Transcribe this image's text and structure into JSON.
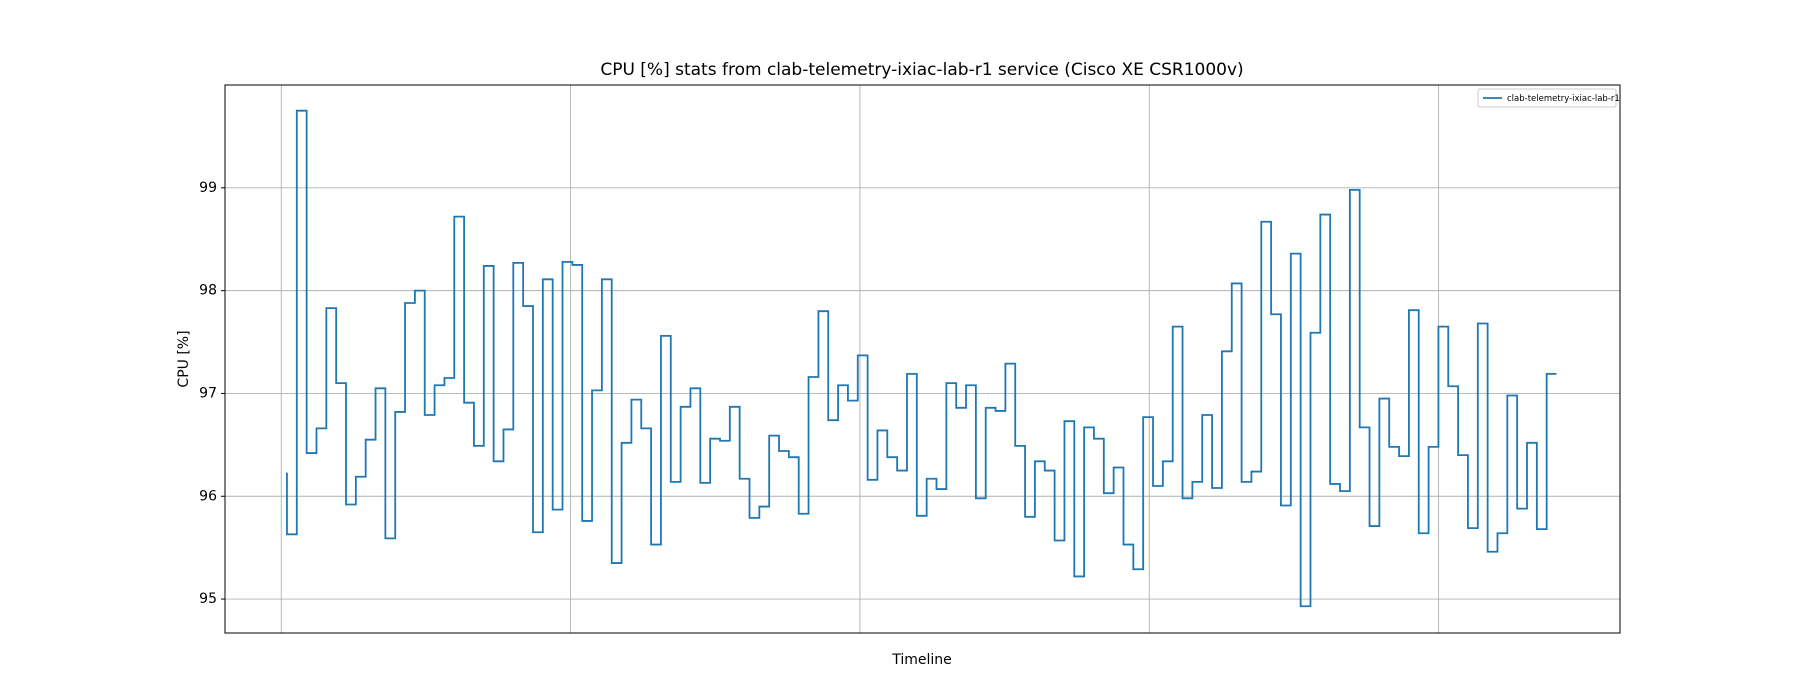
{
  "chart_data": {
    "type": "step",
    "title": "CPU [%] stats from clab-telemetry-ixiac-lab-r1 service (Cisco XE CSR1000v)",
    "xlabel": "Timeline",
    "ylabel": "CPU [%]",
    "ylim": [
      94.67,
      100.0
    ],
    "yticks": [
      95,
      96,
      97,
      98,
      99
    ],
    "grid": true,
    "legend": "upper right",
    "series": [
      {
        "name": "clab-telemetry-ixiac-lab-r1",
        "color": "#1f77b4",
        "values": [
          96.23,
          95.63,
          99.75,
          96.42,
          96.66,
          97.83,
          97.1,
          95.92,
          96.19,
          96.55,
          97.05,
          95.59,
          96.82,
          97.88,
          98.0,
          96.79,
          97.08,
          97.15,
          98.72,
          96.91,
          96.49,
          98.24,
          96.34,
          96.65,
          98.27,
          97.85,
          95.65,
          98.11,
          95.87,
          98.28,
          98.25,
          95.76,
          97.03,
          98.11,
          95.35,
          96.52,
          96.94,
          96.66,
          95.53,
          97.56,
          96.14,
          96.87,
          97.05,
          96.13,
          96.56,
          96.54,
          96.87,
          96.17,
          95.79,
          95.9,
          96.59,
          96.44,
          96.38,
          95.83,
          97.16,
          97.8,
          96.74,
          97.08,
          96.93,
          97.37,
          96.16,
          96.64,
          96.38,
          96.25,
          97.19,
          95.81,
          96.17,
          96.07,
          97.1,
          96.86,
          97.08,
          95.98,
          96.86,
          96.83,
          97.29,
          96.49,
          95.8,
          96.34,
          96.25,
          95.57,
          96.73,
          95.22,
          96.67,
          96.56,
          96.03,
          96.28,
          95.53,
          95.29,
          96.77,
          96.1,
          96.34,
          97.65,
          95.98,
          96.14,
          96.79,
          96.08,
          97.41,
          98.07,
          96.14,
          96.24,
          98.67,
          97.77,
          95.91,
          98.36,
          94.93,
          97.59,
          98.74,
          96.12,
          96.05,
          98.98,
          96.67,
          95.71,
          96.95,
          96.48,
          96.39,
          97.81,
          95.64,
          96.48,
          97.65,
          97.07,
          96.4,
          95.69,
          97.68,
          95.46,
          95.64,
          96.98,
          95.88,
          96.52,
          95.68,
          97.19
        ]
      }
    ]
  }
}
